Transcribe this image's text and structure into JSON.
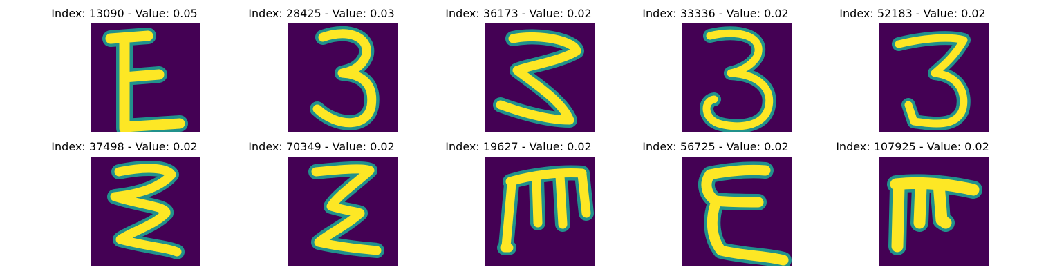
{
  "chart_data": {
    "type": "image-grid",
    "colormap": "viridis",
    "colors": {
      "background": "#440154",
      "stroke": "#fde725",
      "edge": "#21918c"
    },
    "panels": [
      {
        "title": "Index: 13090 - Value: 0.05",
        "index": 13090,
        "value": 0.05,
        "glyph": "E"
      },
      {
        "title": "Index: 28425 - Value: 0.03",
        "index": 28425,
        "value": 0.03,
        "glyph": "3"
      },
      {
        "title": "Index: 36173 - Value: 0.02",
        "index": 36173,
        "value": 0.02,
        "glyph": "3"
      },
      {
        "title": "Index: 33336 - Value: 0.02",
        "index": 33336,
        "value": 0.02,
        "glyph": "3"
      },
      {
        "title": "Index: 52183 - Value: 0.02",
        "index": 52183,
        "value": 0.02,
        "glyph": "3"
      },
      {
        "title": "Index: 37498 - Value: 0.02",
        "index": 37498,
        "value": 0.02,
        "glyph": "3"
      },
      {
        "title": "Index: 70349 - Value: 0.02",
        "index": 70349,
        "value": 0.02,
        "glyph": "E"
      },
      {
        "title": "Index: 19627 - Value: 0.02",
        "index": 19627,
        "value": 0.02,
        "glyph": "M"
      },
      {
        "title": "Index: 56725 - Value: 0.02",
        "index": 56725,
        "value": 0.02,
        "glyph": "E"
      },
      {
        "title": "Index: 107925 - Value: 0.02",
        "index": 107925,
        "value": 0.02,
        "glyph": "T"
      }
    ]
  }
}
